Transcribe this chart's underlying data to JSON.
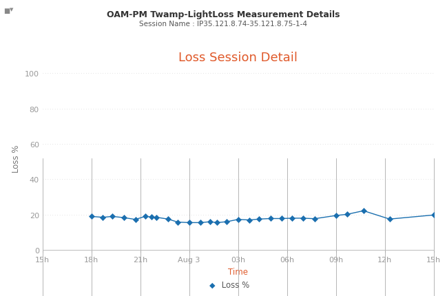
{
  "title": "OAM-PM Twamp-LightLoss Measurement Details",
  "subtitle": "Session Name : IP35.121.8.74-35.121.8.75-1-4",
  "chart_title": "Loss Session Detail",
  "xlabel": "Time",
  "ylabel": "Loss %",
  "legend_label": "Loss %",
  "background_color": "#ffffff",
  "line_color": "#1a6faf",
  "marker_color": "#1b6faf",
  "grid_color": "#bbbbbb",
  "chart_title_color": "#e05a2b",
  "title_color": "#333333",
  "subtitle_color": "#555555",
  "xlabel_color": "#e05a2b",
  "ylabel_color": "#777777",
  "tick_color": "#999999",
  "ylim": [
    0,
    104
  ],
  "yticks": [
    0,
    20,
    40,
    60,
    80,
    100
  ],
  "x_tick_labels": [
    "15h",
    "18h",
    "21h",
    "Aug 3",
    "03h",
    "06h",
    "09h",
    "12h",
    "15h"
  ],
  "x_tick_positions": [
    0,
    3,
    6,
    9,
    12,
    15,
    18,
    21,
    24
  ],
  "time_points": [
    3.0,
    3.7,
    4.3,
    5.0,
    5.7,
    6.3,
    6.7,
    7.0,
    7.7,
    8.3,
    9.0,
    9.7,
    10.3,
    10.7,
    11.3,
    12.0,
    12.7,
    13.3,
    14.0,
    14.7,
    15.3,
    16.0,
    16.7,
    18.0,
    18.7,
    19.7,
    21.3,
    24.0
  ],
  "loss_values": [
    19.0,
    18.5,
    19.0,
    18.3,
    17.3,
    19.0,
    18.7,
    18.5,
    17.5,
    15.8,
    15.5,
    15.5,
    16.0,
    15.5,
    16.0,
    17.3,
    17.0,
    17.5,
    17.8,
    17.8,
    18.0,
    18.0,
    17.7,
    19.5,
    20.2,
    22.2,
    17.5,
    19.8
  ],
  "title_fontsize": 9,
  "subtitle_fontsize": 7.5,
  "chart_title_fontsize": 13,
  "axis_label_fontsize": 8.5,
  "tick_fontsize": 8,
  "legend_fontsize": 8.5
}
